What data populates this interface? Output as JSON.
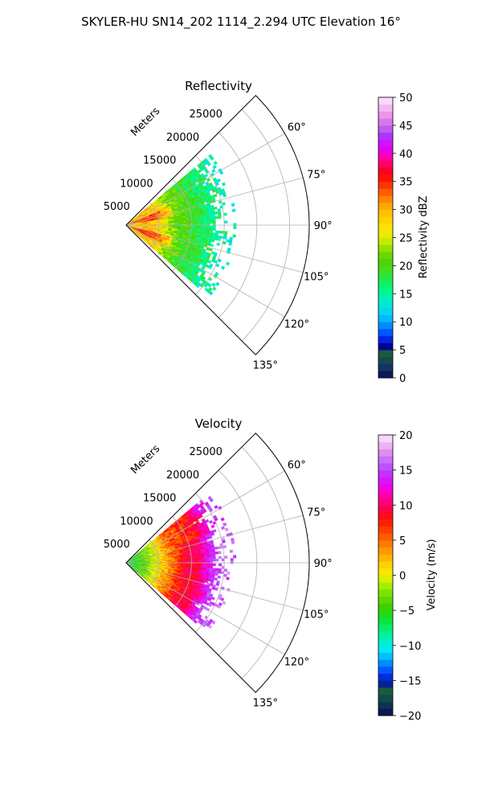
{
  "suptitle": "SKYLER-HU  SN14_202  1114_2.294 UTC Elevation 16°",
  "panels": [
    {
      "title": "Reflectivity",
      "range_label": "Meters",
      "range_ticks": [
        "5000",
        "10000",
        "15000",
        "20000",
        "25000"
      ],
      "angle_ticks": [
        "60°",
        "75°",
        "90°",
        "105°",
        "120°",
        "135°"
      ],
      "colorbar": {
        "label": "Reflectivity dBZ",
        "ticks": [
          "0",
          "5",
          "10",
          "15",
          "20",
          "25",
          "30",
          "35",
          "40",
          "45",
          "50"
        ],
        "min": 0,
        "max": 50
      }
    },
    {
      "title": "Velocity",
      "range_label": "Meters",
      "range_ticks": [
        "5000",
        "10000",
        "15000",
        "20000",
        "25000"
      ],
      "angle_ticks": [
        "60°",
        "75°",
        "90°",
        "105°",
        "120°",
        "135°"
      ],
      "colorbar": {
        "label": "Velocity (m/s)",
        "ticks": [
          "−20",
          "−15",
          "−10",
          "−5",
          "0",
          "5",
          "10",
          "15",
          "20"
        ],
        "min": -20,
        "max": 20
      }
    }
  ],
  "chart_data": [
    {
      "type": "heatmap",
      "projection": "polar-sector",
      "title": "Reflectivity",
      "r_axis": {
        "label": "Meters",
        "ticks": [
          5000,
          10000,
          15000,
          20000,
          25000
        ],
        "range": [
          0,
          28000
        ]
      },
      "theta_axis": {
        "ticks_deg": [
          60,
          75,
          90,
          105,
          120,
          135
        ],
        "range_deg": [
          45,
          135
        ]
      },
      "data_range_m": [
        0,
        16500
      ],
      "data_theta_range_deg": [
        50,
        131
      ],
      "colorbar": {
        "label": "Reflectivity dBZ",
        "range": [
          0,
          50
        ],
        "colormap": "pyart_HomeyerRainbow"
      },
      "profile_by_range": [
        {
          "r_m": 1000,
          "value": 28
        },
        {
          "r_m": 3000,
          "value": 30
        },
        {
          "r_m": 5000,
          "value": 28
        },
        {
          "r_m": 7000,
          "value": 22
        },
        {
          "r_m": 9000,
          "value": 20
        },
        {
          "r_m": 11000,
          "value": 18
        },
        {
          "r_m": 13000,
          "value": 16
        },
        {
          "r_m": 15000,
          "value": 15
        }
      ],
      "grid": true
    },
    {
      "type": "heatmap",
      "projection": "polar-sector",
      "title": "Velocity",
      "r_axis": {
        "label": "Meters",
        "ticks": [
          5000,
          10000,
          15000,
          20000,
          25000
        ],
        "range": [
          0,
          28000
        ]
      },
      "theta_axis": {
        "ticks_deg": [
          60,
          75,
          90,
          105,
          120,
          135
        ],
        "range_deg": [
          45,
          135
        ]
      },
      "data_range_m": [
        0,
        16500
      ],
      "data_theta_range_deg": [
        50,
        131
      ],
      "colorbar": {
        "label": "Velocity (m/s)",
        "range": [
          -20,
          20
        ],
        "colormap": "pyart_BuDRd18"
      },
      "profile_by_range": [
        {
          "r_m": 1000,
          "value": -6
        },
        {
          "r_m": 3000,
          "value": -3
        },
        {
          "r_m": 5000,
          "value": 1
        },
        {
          "r_m": 7000,
          "value": 5
        },
        {
          "r_m": 9000,
          "value": 9
        },
        {
          "r_m": 11000,
          "value": 10
        },
        {
          "r_m": 13000,
          "value": 14
        },
        {
          "r_m": 15000,
          "value": 16
        }
      ],
      "grid": true
    }
  ]
}
